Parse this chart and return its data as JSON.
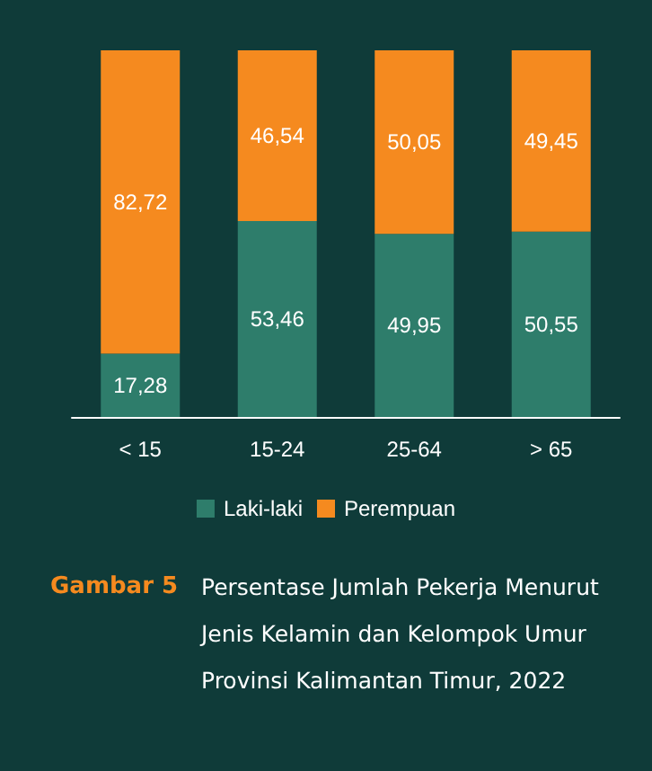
{
  "chart_data": {
    "type": "bar",
    "title": "Gambar 5",
    "subtitle": "Persentase Jumlah Pekerja Menurut Jenis Kelamin dan Kelompok Umur Provinsi Kalimantan Timur, 2022",
    "categories": [
      "< 15",
      "15-24",
      "25-64",
      "> 65"
    ],
    "stacked": true,
    "series": [
      {
        "name": "Laki-laki",
        "color": "#2e7d6b",
        "values": [
          17.28,
          53.46,
          49.95,
          50.55
        ],
        "value_labels": [
          "17,28",
          "53,46",
          "49,95",
          "50,55"
        ]
      },
      {
        "name": "Perempuan",
        "color": "#f58a1f",
        "values": [
          82.72,
          46.54,
          50.05,
          49.45
        ],
        "value_labels": [
          "82,72",
          "46,54",
          "50,05",
          "49,45"
        ]
      }
    ],
    "legend": "bottom"
  }
}
